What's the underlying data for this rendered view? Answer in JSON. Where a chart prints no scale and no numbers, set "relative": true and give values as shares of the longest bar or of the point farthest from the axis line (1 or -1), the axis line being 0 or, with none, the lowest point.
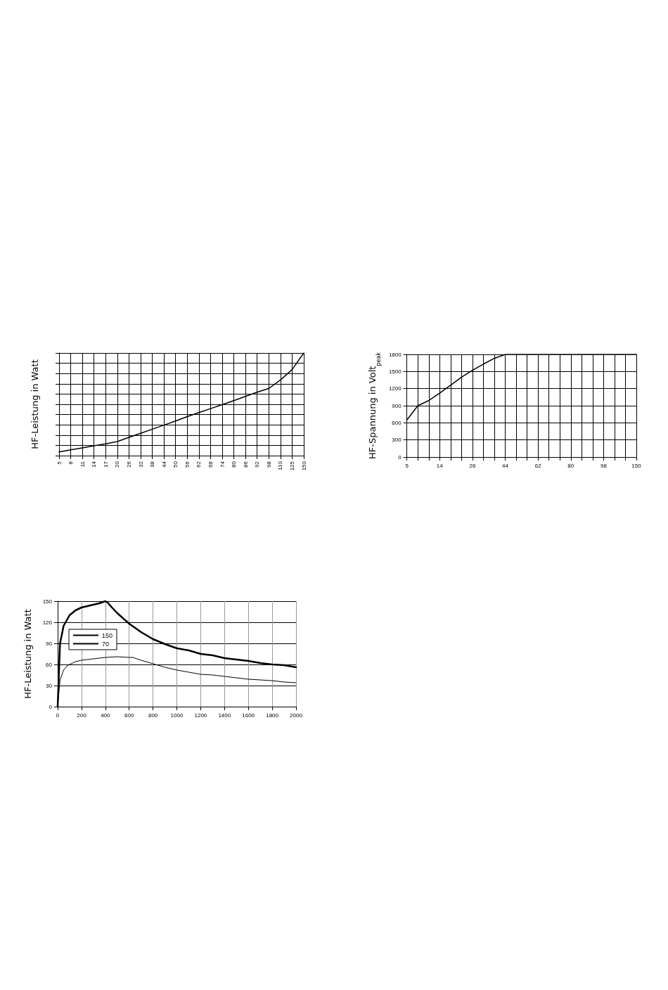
{
  "chart_data": [
    {
      "type": "line",
      "ylabel": "HF-Leistung in Watt",
      "categories": [
        "5",
        "8",
        "11",
        "14",
        "17",
        "20",
        "26",
        "32",
        "38",
        "44",
        "50",
        "56",
        "62",
        "68",
        "74",
        "80",
        "86",
        "92",
        "98",
        "110",
        "125",
        "150"
      ],
      "relative": true,
      "series": [
        {
          "color": "#000000",
          "values": [
            0.036,
            0.057,
            0.076,
            0.096,
            0.115,
            0.137,
            0.178,
            0.217,
            0.258,
            0.297,
            0.337,
            0.38,
            0.419,
            0.458,
            0.497,
            0.536,
            0.577,
            0.618,
            0.654,
            0.737,
            0.838,
            1
          ]
        }
      ],
      "grid": true,
      "legend": false,
      "marker": "none",
      "line_style": "solid"
    },
    {
      "type": "line",
      "ylabel": "HF-Spannung in Volt$_{peak}$",
      "categories": [
        "5",
        null,
        null,
        "14",
        null,
        null,
        "26",
        null,
        null,
        "44",
        null,
        null,
        "62",
        null,
        null,
        "80",
        null,
        null,
        "98",
        null,
        null,
        "150"
      ],
      "series": [
        {
          "color": "#000000",
          "values": [
            650,
            900,
            990,
            1120,
            1260,
            1400,
            1520,
            1630,
            1730,
            1800,
            1800,
            1800,
            1800,
            1800,
            1800,
            1800,
            1800,
            1800,
            1800,
            1800,
            1800,
            1800
          ]
        }
      ],
      "ylim": [
        0,
        1800
      ],
      "yticks": [
        0,
        300,
        600,
        900,
        1200,
        1500,
        1800
      ],
      "grid": true,
      "legend": false,
      "marker": "none",
      "line_style": "solid"
    },
    {
      "type": "line",
      "ylabel": "HF-Leistung in Watt",
      "xlim": [
        0,
        2000
      ],
      "xticks": [
        0,
        200,
        400,
        600,
        800,
        1000,
        1200,
        1400,
        1600,
        1800,
        2000
      ],
      "ylim": [
        0,
        150
      ],
      "yticks": [
        0,
        30,
        60,
        90,
        120,
        150
      ],
      "series": [
        {
          "name": "150",
          "color": "#000000",
          "x": [
            0,
            20,
            50,
            100,
            150,
            200,
            250,
            300,
            350,
            400,
            420,
            450,
            500,
            600,
            700,
            800,
            900,
            1000,
            1100,
            1200,
            1300,
            1400,
            1500,
            1600,
            1700,
            1800,
            1900,
            2000
          ],
          "values": [
            0,
            90,
            115,
            130,
            137,
            141,
            143,
            145,
            147,
            150,
            148,
            142,
            133,
            118,
            106,
            96,
            89,
            83,
            80,
            75,
            73,
            69,
            67,
            65,
            62,
            60,
            59,
            56
          ]
        },
        {
          "name": "70",
          "color": "#000000",
          "x": [
            0,
            20,
            50,
            80,
            100,
            150,
            200,
            300,
            400,
            500,
            600,
            630,
            700,
            800,
            900,
            1000,
            1100,
            1200,
            1300,
            1400,
            1500,
            1600,
            1700,
            1800,
            1900,
            2000
          ],
          "values": [
            0,
            38,
            52,
            58,
            60,
            64,
            66,
            68,
            70,
            71,
            70,
            70,
            66,
            61,
            56,
            52,
            49,
            46,
            45,
            43,
            41,
            39,
            38,
            37,
            35,
            34
          ]
        }
      ],
      "grid": true,
      "legend": "top left",
      "marker": "none",
      "line_style": "solid"
    }
  ]
}
